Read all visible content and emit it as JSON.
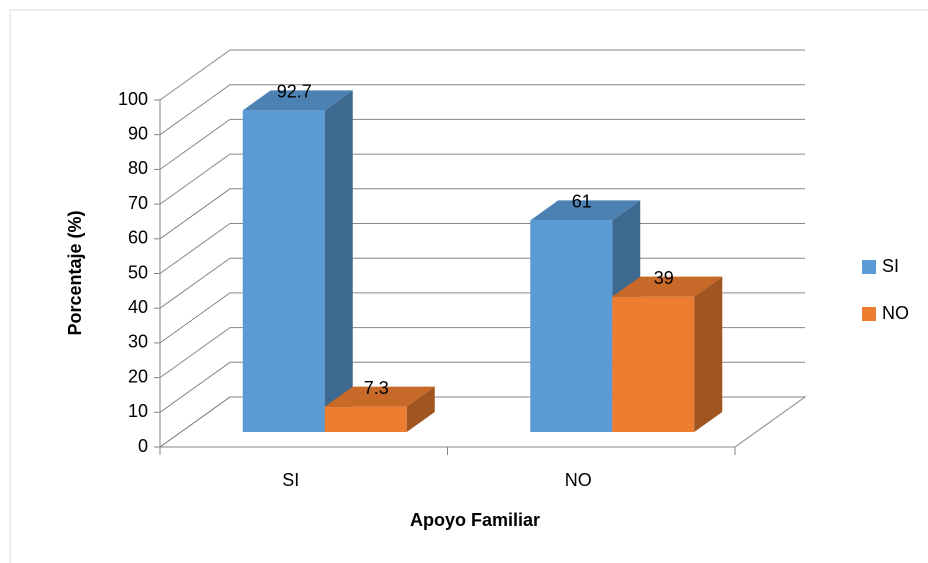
{
  "chart_data": {
    "type": "bar3d",
    "x_label": "Apoyo Familiar",
    "y_label": "Porcentaje (%)",
    "categories": [
      "SI",
      "NO"
    ],
    "series": [
      {
        "name": "SI",
        "color": "#5b9bd5",
        "values": [
          92.7,
          61
        ]
      },
      {
        "name": "NO",
        "color": "#ed7d31",
        "values": [
          7.3,
          39
        ]
      }
    ],
    "ylim": [
      0,
      100
    ],
    "yticks": [
      0,
      10,
      20,
      30,
      40,
      50,
      60,
      70,
      80,
      90,
      100
    ],
    "grid": true,
    "legend": "right"
  }
}
